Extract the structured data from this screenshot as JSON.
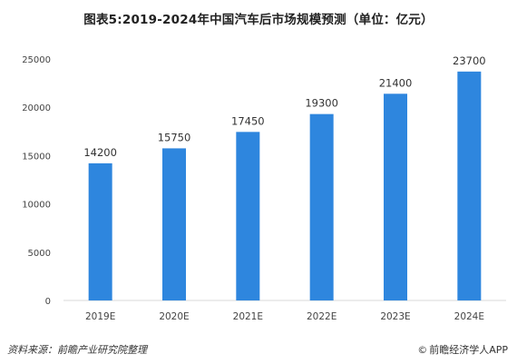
{
  "chart_data": {
    "type": "bar",
    "title": "图表5:2019-2024年中国汽车后市场规模预测（单位：亿元）",
    "categories": [
      "2019E",
      "2020E",
      "2021E",
      "2022E",
      "2023E",
      "2024E"
    ],
    "values": [
      14200,
      15750,
      17450,
      19300,
      21400,
      23700
    ],
    "data_labels": [
      "14200",
      "15750",
      "17450",
      "19300",
      "21400",
      "23700"
    ],
    "ylim": [
      0,
      25000
    ],
    "yticks": [
      0,
      5000,
      10000,
      15000,
      20000,
      25000
    ],
    "ytick_labels": [
      "0",
      "5000",
      "10000",
      "15000",
      "20000",
      "25000"
    ],
    "xlabel": "",
    "ylabel": "",
    "grid": false,
    "bar_color": "#2e86de"
  },
  "footer": {
    "source": "资料来源：前瞻产业研究院整理",
    "credit": "前瞻经济学人APP",
    "credit_icon": "©"
  }
}
